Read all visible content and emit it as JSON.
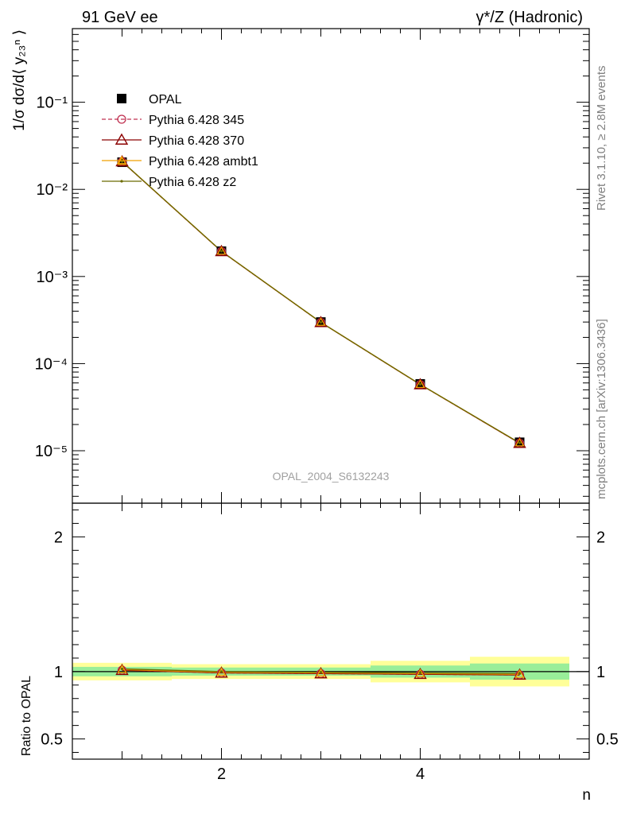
{
  "header": {
    "left": "91 GeV ee",
    "right": "γ*/Z (Hadronic)"
  },
  "side_labels": {
    "rivet": "Rivet 3.1.10, ≥ 2.8M events",
    "mcplots": "mcplots.cern.ch [arXiv:1306.3436]"
  },
  "watermark": "OPAL_2004_S6132243",
  "chart_data": [
    {
      "type": "line",
      "panel": "main",
      "ylabel": "1/σ dσ/d⟨ y₂₃ⁿ ⟩",
      "xlabel": "n",
      "ylog": true,
      "xlim": [
        0.5,
        5.7
      ],
      "ylim": [
        2.5e-06,
        0.7
      ],
      "yticks": [
        {
          "value": 0.1,
          "label": "10⁻¹"
        },
        {
          "value": 0.01,
          "label": "10⁻²"
        },
        {
          "value": 0.001,
          "label": "10⁻³"
        },
        {
          "value": 0.0001,
          "label": "10⁻⁴"
        },
        {
          "value": 1e-05,
          "label": "10⁻⁵"
        }
      ],
      "legend_position": "top-left",
      "series": [
        {
          "name": "OPAL",
          "marker": "square",
          "color": "#000000",
          "line": "none",
          "x": [
            1,
            2,
            3,
            4,
            5
          ],
          "y": [
            0.0205,
            0.00195,
            0.0003,
            5.85e-05,
            1.25e-05
          ]
        },
        {
          "name": "Pythia 6.428 345",
          "marker": "open-circle",
          "color": "#c03050",
          "line": "dashed",
          "x": [
            1,
            2,
            3,
            4,
            5
          ],
          "y": [
            0.0208,
            0.00194,
            0.000297,
            5.75e-05,
            1.22e-05
          ]
        },
        {
          "name": "Pythia 6.428 370",
          "marker": "open-triangle",
          "color": "#8b0000",
          "line": "solid",
          "x": [
            1,
            2,
            3,
            4,
            5
          ],
          "y": [
            0.0208,
            0.00194,
            0.000297,
            5.75e-05,
            1.22e-05
          ]
        },
        {
          "name": "Pythia 6.428 ambt1",
          "marker": "open-triangle-small",
          "color": "#f0a000",
          "line": "solid",
          "x": [
            1,
            2,
            3,
            4,
            5
          ],
          "y": [
            0.0209,
            0.00195,
            0.000298,
            5.77e-05,
            1.23e-05
          ]
        },
        {
          "name": "Pythia 6.428 z2",
          "marker": "dot",
          "color": "#6b6b00",
          "line": "solid",
          "x": [
            1,
            2,
            3,
            4,
            5
          ],
          "y": [
            0.0209,
            0.00195,
            0.000298,
            5.78e-05,
            1.23e-05
          ]
        }
      ]
    },
    {
      "type": "line",
      "panel": "ratio",
      "ylabel": "Ratio to OPAL",
      "xlabel": "n",
      "xlim": [
        0.5,
        5.7
      ],
      "ylim": [
        0.35,
        2.25
      ],
      "yticks": [
        {
          "value": 0.5,
          "label": "0.5"
        },
        {
          "value": 1,
          "label": "1"
        },
        {
          "value": 2,
          "label": "2"
        }
      ],
      "xticks": [
        {
          "value": 2,
          "label": "2"
        },
        {
          "value": 4,
          "label": "4"
        }
      ],
      "bands": {
        "edges": [
          0.5,
          1.5,
          2.5,
          3.5,
          4.5,
          5.5
        ],
        "inner": [
          0.035,
          0.03,
          0.03,
          0.045,
          0.06
        ],
        "outer": [
          0.065,
          0.055,
          0.055,
          0.08,
          0.11
        ]
      },
      "series": [
        {
          "name": "Pythia 6.428 345",
          "x": [
            1,
            2,
            3,
            4,
            5
          ],
          "y": [
            1.01,
            0.99,
            0.985,
            0.98,
            0.975
          ]
        },
        {
          "name": "Pythia 6.428 370",
          "x": [
            1,
            2,
            3,
            4,
            5
          ],
          "y": [
            1.01,
            0.99,
            0.985,
            0.98,
            0.975
          ]
        },
        {
          "name": "Pythia 6.428 ambt1",
          "x": [
            1,
            2,
            3,
            4,
            5
          ],
          "y": [
            1.015,
            0.995,
            0.99,
            0.985,
            0.98
          ]
        },
        {
          "name": "Pythia 6.428 z2",
          "x": [
            1,
            2,
            3,
            4,
            5
          ],
          "y": [
            1.02,
            1.0,
            0.995,
            0.99,
            0.985
          ]
        }
      ]
    }
  ]
}
